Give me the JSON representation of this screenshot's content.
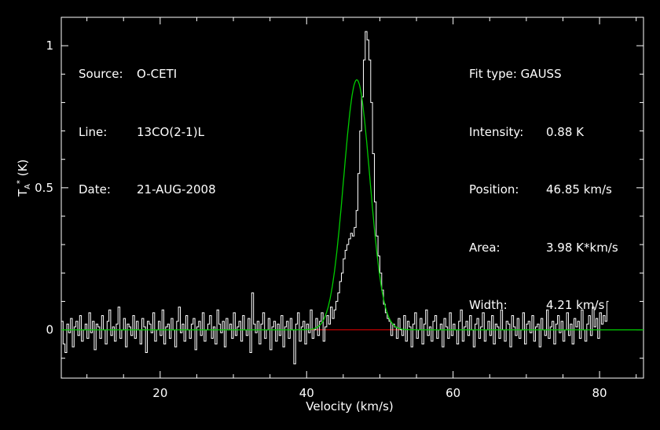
{
  "header_left": [
    {
      "key": "Source:",
      "value": "O-CETI"
    },
    {
      "key": "Line:",
      "value": "13CO(2-1)L"
    },
    {
      "key": "Date:",
      "value": "21-AUG-2008"
    }
  ],
  "header_right": {
    "fit_type": "Fit type: GAUSS",
    "rows": [
      {
        "key": "Intensity:",
        "value": "0.88 K"
      },
      {
        "key": "Position:",
        "value": "46.85 km/s"
      },
      {
        "key": "Area:",
        "value": "3.98 K*km/s"
      },
      {
        "key": "Width:",
        "value": "4.21 km/s"
      }
    ]
  },
  "colors": {
    "background": "#000000",
    "axes": "#ffffff",
    "spectrum": "#ffffff",
    "fit": "#00cc00",
    "baseline": "#cc0000"
  },
  "chart_data": {
    "type": "line",
    "title": "",
    "xlabel": "Velocity (km/s)",
    "ylabel": "T_A^* (K)",
    "ylabel_main": "T",
    "ylabel_sub": "A",
    "ylabel_sup": "*",
    "ylabel_unit": "(K)",
    "xlim": [
      6.5,
      86
    ],
    "ylim": [
      -0.17,
      1.1
    ],
    "xticks": [
      20,
      40,
      60,
      80
    ],
    "yticks": [
      0,
      0.5,
      1
    ],
    "ytick_labels": [
      "0",
      "0.5",
      "1"
    ],
    "x_step": 0.25,
    "series": [
      {
        "name": "",
        "style": "histogram",
        "values": [
          0.03,
          -0.05,
          -0.08,
          0.02,
          -0.01,
          0.04,
          -0.06,
          0.01,
          0.03,
          -0.02,
          0.05,
          -0.04,
          0.0,
          0.02,
          -0.03,
          0.06,
          -0.01,
          0.03,
          -0.07,
          0.02,
          0.01,
          -0.03,
          0.05,
          0.0,
          -0.05,
          0.03,
          0.07,
          -0.02,
          0.01,
          -0.04,
          0.02,
          0.08,
          -0.03,
          0.0,
          0.04,
          -0.06,
          0.02,
          0.01,
          -0.02,
          0.05,
          -0.03,
          0.03,
          0.0,
          -0.05,
          0.04,
          0.01,
          -0.08,
          0.03,
          0.02,
          -0.01,
          0.06,
          -0.04,
          0.0,
          0.03,
          -0.02,
          0.07,
          -0.05,
          0.01,
          0.02,
          -0.03,
          0.04,
          0.0,
          -0.06,
          0.03,
          0.08,
          -0.01,
          0.02,
          -0.04,
          0.05,
          0.0,
          -0.03,
          0.02,
          0.04,
          -0.07,
          0.01,
          0.03,
          -0.02,
          0.06,
          -0.04,
          0.0,
          0.02,
          0.05,
          -0.03,
          0.01,
          -0.05,
          0.07,
          0.02,
          -0.01,
          0.03,
          -0.06,
          0.04,
          0.0,
          0.02,
          -0.03,
          0.06,
          -0.02,
          0.01,
          0.03,
          -0.04,
          0.05,
          0.0,
          -0.02,
          0.04,
          -0.08,
          0.13,
          0.02,
          -0.01,
          0.03,
          -0.05,
          0.02,
          0.06,
          -0.03,
          0.0,
          0.04,
          -0.07,
          0.01,
          0.03,
          -0.04,
          0.02,
          -0.02,
          0.05,
          -0.06,
          0.01,
          0.03,
          -0.03,
          0.04,
          0.0,
          -0.12,
          0.02,
          0.06,
          -0.04,
          0.01,
          0.03,
          -0.05,
          0.02,
          -0.01,
          0.07,
          -0.03,
          0.0,
          0.04,
          -0.02,
          0.03,
          0.06,
          -0.04,
          0.01,
          0.05,
          0.02,
          0.08,
          0.04,
          0.07,
          0.1,
          0.13,
          0.17,
          0.2,
          0.25,
          0.28,
          0.3,
          0.32,
          0.34,
          0.33,
          0.36,
          0.42,
          0.55,
          0.7,
          0.82,
          0.95,
          1.05,
          1.02,
          0.95,
          0.8,
          0.62,
          0.45,
          0.33,
          0.26,
          0.2,
          0.14,
          0.09,
          0.06,
          0.04,
          0.03,
          -0.02,
          0.02,
          0.01,
          -0.03,
          0.04,
          0.0,
          -0.02,
          0.05,
          -0.04,
          0.03,
          0.01,
          -0.06,
          0.02,
          0.06,
          -0.03,
          0.0,
          0.04,
          -0.05,
          0.02,
          0.07,
          -0.02,
          0.01,
          -0.04,
          0.03,
          0.05,
          -0.03,
          0.0,
          0.02,
          -0.06,
          0.04,
          0.01,
          -0.03,
          0.06,
          -0.02,
          0.02,
          0.0,
          -0.05,
          0.03,
          0.07,
          -0.04,
          0.01,
          0.03,
          -0.02,
          0.05,
          0.0,
          -0.06,
          0.02,
          0.04,
          -0.03,
          0.01,
          0.06,
          -0.04,
          0.0,
          0.03,
          -0.02,
          0.05,
          -0.05,
          0.02,
          0.01,
          -0.03,
          0.07,
          0.0,
          -0.04,
          0.03,
          0.02,
          -0.06,
          0.05,
          0.01,
          -0.02,
          0.04,
          -0.03,
          0.0,
          0.06,
          -0.05,
          0.02,
          0.03,
          -0.01,
          0.05,
          -0.04,
          0.01,
          0.02,
          -0.06,
          0.04,
          0.0,
          -0.02,
          0.07,
          -0.03,
          0.01,
          0.03,
          -0.05,
          0.02,
          0.05,
          -0.01,
          0.03,
          -0.04,
          0.0,
          0.06,
          -0.02,
          0.02,
          -0.05,
          0.04,
          0.01,
          0.03,
          -0.03,
          0.07,
          0.0,
          -0.04,
          0.02,
          0.05,
          -0.02,
          0.08,
          0.01,
          0.04,
          -0.03,
          0.06,
          0.02,
          0.05,
          0.03,
          0.1
        ]
      },
      {
        "name": "",
        "style": "gaussian-fit",
        "amplitude": 0.88,
        "center": 46.85,
        "fwhm": 4.21
      },
      {
        "name": "",
        "style": "baseline",
        "x": [
          40.5,
          53
        ],
        "y": [
          0,
          0
        ]
      }
    ]
  }
}
